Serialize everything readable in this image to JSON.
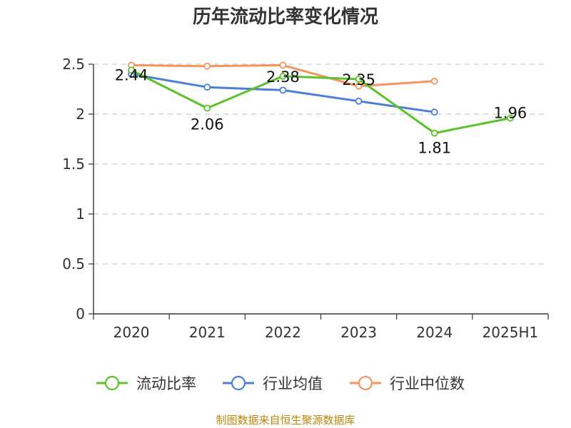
{
  "chart_data": {
    "type": "line",
    "title": "历年流动比率变化情况",
    "xlabel": "",
    "ylabel": "",
    "categories": [
      "2020",
      "2021",
      "2022",
      "2023",
      "2024",
      "2025H1"
    ],
    "ylim": [
      0,
      2.5
    ],
    "yticks": [
      "0",
      "0.5",
      "1",
      "1.5",
      "2",
      "2.5"
    ],
    "grid": true,
    "legend_position": "bottom",
    "series": [
      {
        "name": "流动比率",
        "color": "#5bc22c",
        "values": [
          2.44,
          2.06,
          2.38,
          2.35,
          1.81,
          1.96
        ],
        "labels": [
          "2.44",
          "2.06",
          "2.38",
          "2.35",
          "1.81",
          "1.96"
        ]
      },
      {
        "name": "行业均值",
        "color": "#4a7fd9",
        "values": [
          2.4,
          2.27,
          2.24,
          2.13,
          2.02,
          null
        ],
        "labels": []
      },
      {
        "name": "行业中位数",
        "color": "#f5945c",
        "values": [
          2.49,
          2.48,
          2.49,
          2.28,
          2.33,
          null
        ],
        "labels": []
      }
    ]
  },
  "footer": {
    "source": "制图数据来自恒生聚源数据库"
  }
}
